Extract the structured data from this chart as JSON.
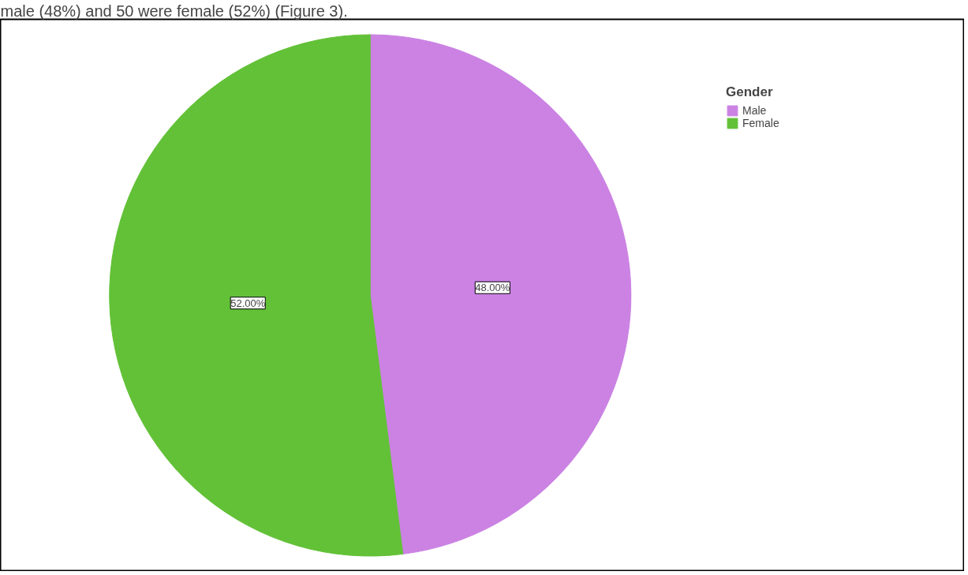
{
  "chart_data": {
    "type": "pie",
    "legend_title": "Gender",
    "categories": [
      "Male",
      "Female"
    ],
    "values": [
      48,
      52
    ],
    "colors": [
      "#cb82e3",
      "#62c137"
    ],
    "value_labels": [
      "48.00%",
      "52.00%"
    ],
    "legend": "top right",
    "annotations": [
      "male (48%) and 50 were female (52%) (Figure 3)."
    ]
  }
}
